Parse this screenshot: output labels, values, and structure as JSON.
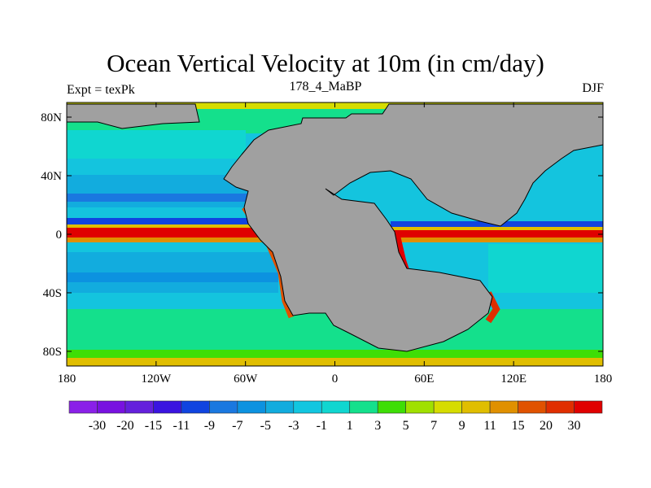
{
  "title": "Ocean Vertical Velocity at 10m (in cm/day)",
  "subtitle_left": "Expt = texPk",
  "subtitle_center": "178_4_MaBP",
  "subtitle_right": "DJF",
  "colors": {
    "land": "#a0a0a0",
    "coast": "#000000"
  },
  "chart_data": {
    "type": "heatmap",
    "title": "Ocean Vertical Velocity at 10m (in cm/day)",
    "x_ticks": [
      "180",
      "120W",
      "60W",
      "0",
      "60E",
      "120E",
      "180"
    ],
    "x_values": [
      -180,
      -120,
      -60,
      0,
      60,
      120,
      180
    ],
    "y_ticks": [
      "80N",
      "40N",
      "0",
      "40S",
      "80S"
    ],
    "y_values": [
      80,
      40,
      0,
      -40,
      -80
    ],
    "xlim": [
      -180,
      180
    ],
    "ylim": [
      -90,
      90
    ],
    "colorbar": {
      "levels": [
        "-30",
        "-20",
        "-15",
        "-11",
        "-9",
        "-7",
        "-5",
        "-3",
        "-1",
        "1",
        "3",
        "5",
        "7",
        "9",
        "11",
        "15",
        "20",
        "30"
      ],
      "colors": [
        "#8a20e8",
        "#7812e0",
        "#6420dc",
        "#3a14e0",
        "#1044e0",
        "#1a78e0",
        "#0c92e0",
        "#12acde",
        "#12c6e0",
        "#10d6d0",
        "#14e08c",
        "#3ede06",
        "#a0e000",
        "#d6dc00",
        "#e0be00",
        "#e09000",
        "#e05200",
        "#e02e00",
        "#e00000"
      ]
    }
  }
}
